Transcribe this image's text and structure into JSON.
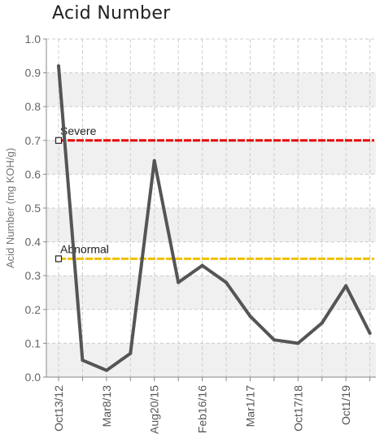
{
  "chart_data": {
    "type": "line",
    "title": "Acid Number",
    "xlabel": "",
    "ylabel": "Acid Number (mg KOH/g)",
    "ylim": [
      0,
      1.0
    ],
    "yticks": [
      "0.0",
      "0.1",
      "0.2",
      "0.3",
      "0.4",
      "0.5",
      "0.6",
      "0.7",
      "0.8",
      "0.9",
      "1.0"
    ],
    "x_tick_labels": [
      "Oct13/12",
      "Mar8/13",
      "Aug20/15",
      "Feb16/16",
      "Mar1/17",
      "Oct17/18",
      "Oct1/19"
    ],
    "grid": true,
    "series": [
      {
        "values": [
          0.92,
          0.05,
          0.02,
          0.07,
          0.64,
          0.28,
          0.33,
          0.28,
          0.18,
          0.11,
          0.1,
          0.16,
          0.27,
          0.13
        ]
      }
    ],
    "thresholds": [
      {
        "label": "Severe",
        "value": 0.7
      },
      {
        "label": "Abnormal",
        "value": 0.35
      }
    ],
    "colors": {
      "series": "#555555",
      "severe": "#e60000",
      "abnormal": "#f0c000",
      "band": "#f0f0f0",
      "grid": "#cccccc",
      "axis": "#888888"
    }
  }
}
